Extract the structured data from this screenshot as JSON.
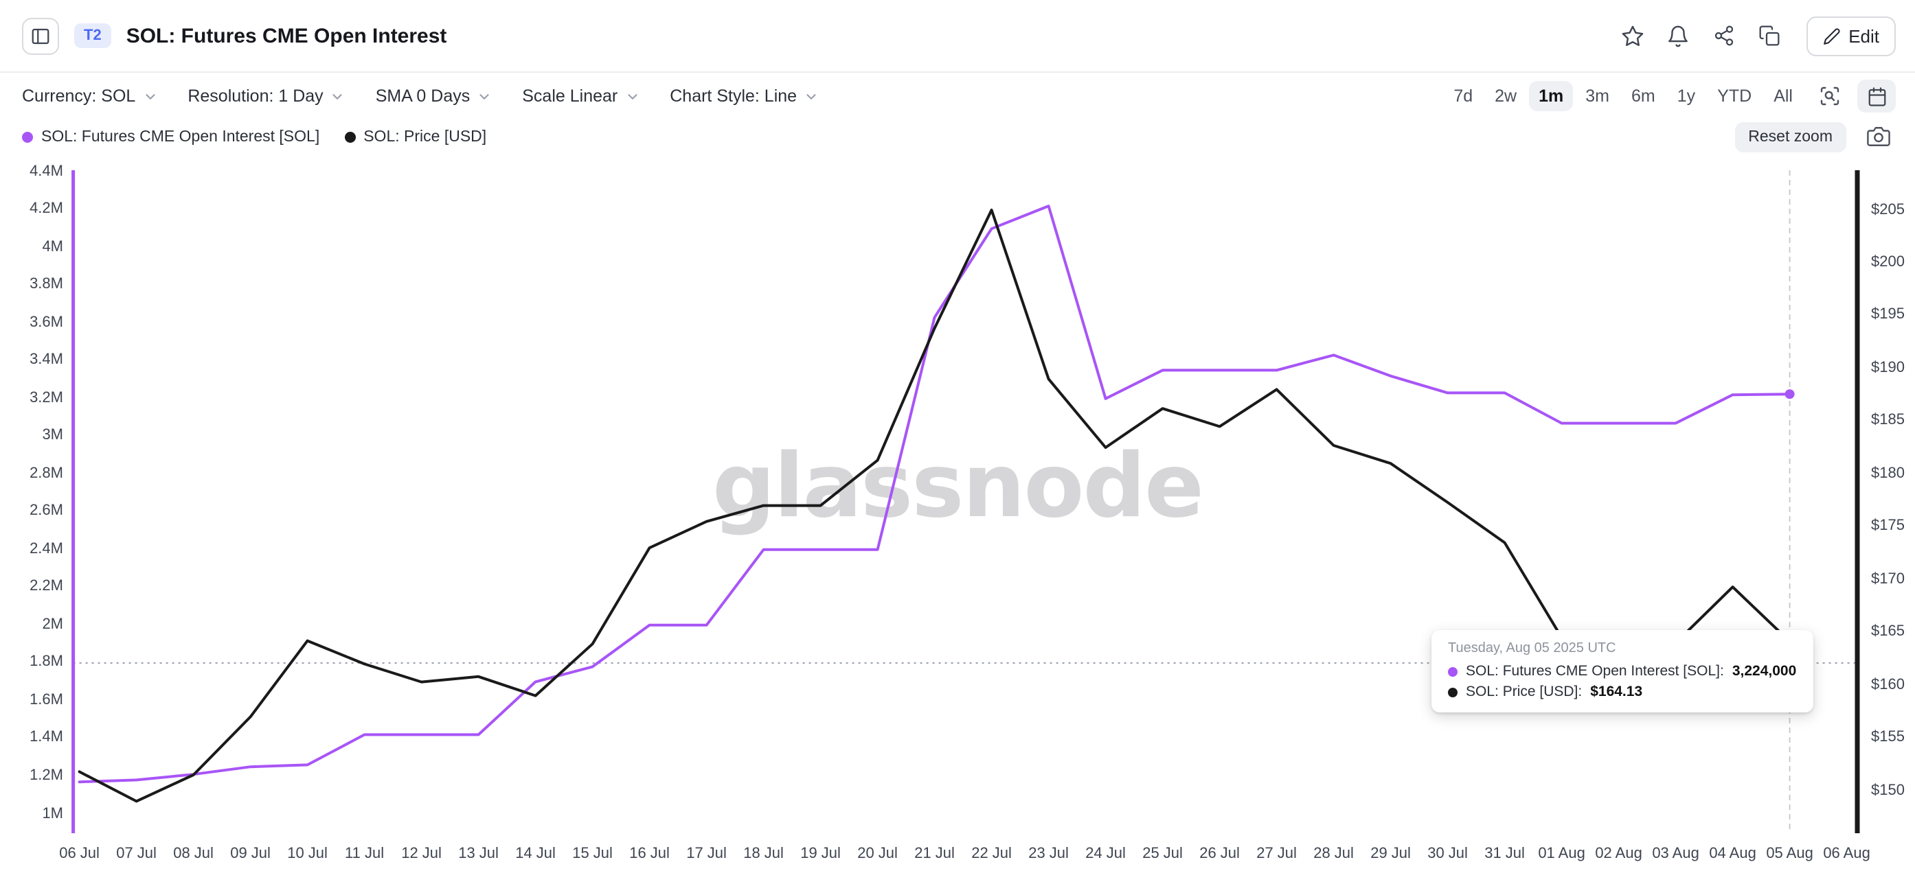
{
  "header": {
    "badge": "T2",
    "title": "SOL: Futures CME Open Interest",
    "actions": {
      "edit_label": "Edit"
    }
  },
  "toolbar": {
    "controls": [
      {
        "id": "currency",
        "label": "Currency: SOL"
      },
      {
        "id": "resolution",
        "label": "Resolution: 1 Day"
      },
      {
        "id": "sma",
        "label": "SMA 0 Days"
      },
      {
        "id": "scale",
        "label": "Scale Linear"
      },
      {
        "id": "chart-style",
        "label": "Chart Style: Line"
      }
    ],
    "ranges": [
      "7d",
      "2w",
      "1m",
      "3m",
      "6m",
      "1y",
      "YTD",
      "All"
    ],
    "active_range": "1m"
  },
  "legend": {
    "reset_zoom_label": "Reset zoom",
    "series": [
      {
        "label": "SOL: Futures CME Open Interest [SOL]",
        "color": "#a855f7"
      },
      {
        "label": "SOL: Price [USD]",
        "color": "#1a1a1a"
      }
    ]
  },
  "tooltip": {
    "title": "Tuesday, Aug 05 2025 UTC",
    "rows": [
      {
        "color": "#a855f7",
        "label": "SOL: Futures CME Open Interest [SOL]:",
        "value": "3,224,000"
      },
      {
        "color": "#1a1a1a",
        "label": "SOL: Price [USD]:",
        "value": "$164.13"
      }
    ]
  },
  "watermark": "glassnode",
  "chart_data": {
    "type": "line",
    "x_labels": [
      "06 Jul",
      "07 Jul",
      "08 Jul",
      "09 Jul",
      "10 Jul",
      "11 Jul",
      "12 Jul",
      "13 Jul",
      "14 Jul",
      "15 Jul",
      "16 Jul",
      "17 Jul",
      "18 Jul",
      "19 Jul",
      "20 Jul",
      "21 Jul",
      "22 Jul",
      "23 Jul",
      "24 Jul",
      "25 Jul",
      "26 Jul",
      "27 Jul",
      "28 Jul",
      "29 Jul",
      "30 Jul",
      "31 Jul",
      "01 Aug",
      "02 Aug",
      "03 Aug",
      "04 Aug",
      "05 Aug",
      "06 Aug"
    ],
    "left_axis": {
      "min": 1000000,
      "max": 4400000,
      "tick_step": 200000,
      "tick_labels": [
        "1M",
        "1.2M",
        "1.4M",
        "1.6M",
        "1.8M",
        "2M",
        "2.2M",
        "2.4M",
        "2.6M",
        "2.8M",
        "3M",
        "3.2M",
        "3.4M",
        "3.6M",
        "3.8M",
        "4M",
        "4.2M",
        "4.4M"
      ]
    },
    "right_axis": {
      "min": 150,
      "max": 205,
      "tick_step": 5,
      "tick_labels": [
        "$150",
        "$155",
        "$160",
        "$165",
        "$170",
        "$175",
        "$180",
        "$185",
        "$190",
        "$195",
        "$200",
        "$205"
      ]
    },
    "series": [
      {
        "name": "SOL: Futures CME Open Interest [SOL]",
        "axis": "left",
        "color": "#a855f7",
        "values": [
          1170000,
          1180000,
          1210000,
          1250000,
          1260000,
          1420000,
          1420000,
          1420000,
          1700000,
          1780000,
          2000000,
          2000000,
          2400000,
          2400000,
          2400000,
          3630000,
          4100000,
          4220000,
          3200000,
          3350000,
          3350000,
          3350000,
          3430000,
          3320000,
          3230000,
          3230000,
          3070000,
          3070000,
          3070000,
          3220000,
          3224000
        ]
      },
      {
        "name": "SOL: Price [USD]",
        "axis": "right",
        "color": "#1a1a1a",
        "values": [
          151.8,
          149.0,
          151.5,
          157.0,
          164.2,
          162.0,
          160.3,
          160.8,
          159.0,
          163.9,
          173.0,
          175.5,
          177.0,
          177.0,
          181.3,
          193.8,
          205.0,
          189.0,
          182.5,
          186.2,
          184.5,
          188.0,
          182.7,
          181.0,
          177.3,
          173.5,
          164.5,
          159.0,
          164.0,
          169.3,
          164.13
        ]
      }
    ],
    "crosshair": {
      "x_label": "05 Aug",
      "y_value_left_axis": 1800000
    },
    "grid": false,
    "legend_position": "top-left"
  }
}
